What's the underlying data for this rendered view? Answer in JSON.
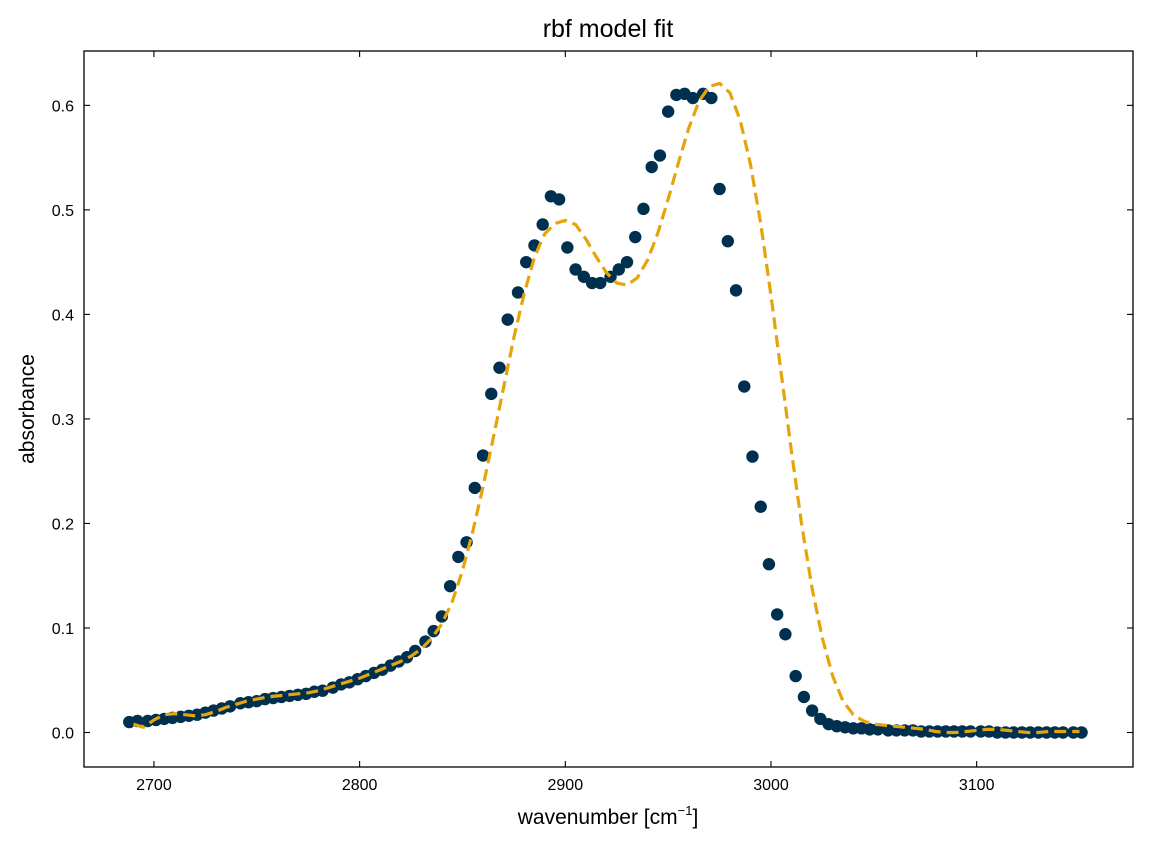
{
  "chart_data": {
    "type": "scatter",
    "title": "rbf model fit",
    "xlabel": "wavenumber [cm",
    "xlabel_sup": "−1",
    "xlabel_close": "]",
    "ylabel": "absorbance",
    "xlim": [
      2666,
      3176
    ],
    "ylim": [
      -0.033,
      0.652
    ],
    "xticks": [
      2700,
      2800,
      2900,
      3000,
      3100
    ],
    "xtick_labels": [
      "2700",
      "2800",
      "2900",
      "3000",
      "3100"
    ],
    "yticks": [
      0.0,
      0.1,
      0.2,
      0.3,
      0.4,
      0.5,
      0.6
    ],
    "ytick_labels": [
      "0.0",
      "0.1",
      "0.2",
      "0.3",
      "0.4",
      "0.5",
      "0.6"
    ],
    "grid": false,
    "colors": {
      "points": "#00304f",
      "fit": "#e5a40a"
    },
    "series": [
      {
        "style": "markers",
        "x": [
          2688,
          2692,
          2697,
          2701,
          2705,
          2709,
          2713,
          2717,
          2721,
          2725,
          2729,
          2733,
          2737,
          2742,
          2746,
          2750,
          2754,
          2758,
          2762,
          2766,
          2770,
          2774,
          2778,
          2782,
          2787,
          2791,
          2795,
          2799,
          2803,
          2807,
          2811,
          2815,
          2819,
          2823,
          2827,
          2832,
          2836,
          2840,
          2844,
          2848,
          2852,
          2856,
          2860,
          2864,
          2868,
          2872,
          2877,
          2881,
          2885,
          2889,
          2893,
          2897,
          2901,
          2905,
          2909,
          2913,
          2917,
          2922,
          2926,
          2930,
          2934,
          2938,
          2942,
          2946,
          2950,
          2954,
          2958,
          2962,
          2967,
          2971,
          2975,
          2979,
          2983,
          2987,
          2991,
          2995,
          2999,
          3003,
          3007,
          3012,
          3016,
          3020,
          3024,
          3028,
          3032,
          3036,
          3040,
          3044,
          3048,
          3052,
          3057,
          3061,
          3065,
          3069,
          3073,
          3077,
          3081,
          3085,
          3089,
          3093,
          3097,
          3102,
          3106,
          3110,
          3114,
          3118,
          3122,
          3126,
          3130,
          3134,
          3138,
          3142,
          3147,
          3151
        ],
        "y": [
          0.01,
          0.011,
          0.011,
          0.012,
          0.013,
          0.014,
          0.015,
          0.016,
          0.017,
          0.019,
          0.021,
          0.023,
          0.025,
          0.028,
          0.029,
          0.03,
          0.032,
          0.033,
          0.034,
          0.035,
          0.036,
          0.037,
          0.039,
          0.04,
          0.043,
          0.046,
          0.048,
          0.051,
          0.054,
          0.057,
          0.06,
          0.064,
          0.068,
          0.072,
          0.078,
          0.087,
          0.097,
          0.111,
          0.14,
          0.168,
          0.182,
          0.234,
          0.265,
          0.324,
          0.349,
          0.395,
          0.421,
          0.45,
          0.466,
          0.486,
          0.513,
          0.51,
          0.464,
          0.443,
          0.436,
          0.43,
          0.43,
          0.436,
          0.443,
          0.45,
          0.474,
          0.501,
          0.541,
          0.552,
          0.594,
          0.61,
          0.611,
          0.607,
          0.611,
          0.607,
          0.52,
          0.47,
          0.423,
          0.331,
          0.264,
          0.216,
          0.161,
          0.113,
          0.094,
          0.054,
          0.034,
          0.021,
          0.013,
          0.008,
          0.006,
          0.005,
          0.004,
          0.004,
          0.003,
          0.003,
          0.002,
          0.002,
          0.002,
          0.002,
          0.001,
          0.001,
          0.001,
          0.001,
          0.001,
          0.001,
          0.001,
          0.001,
          0.001,
          0.0,
          0.0,
          0.0,
          0.0,
          0.0,
          0.0,
          0.0,
          0.0,
          0.0,
          0.0,
          0.0
        ]
      },
      {
        "style": "dashed-line",
        "x": [
          2690,
          2695,
          2700,
          2705,
          2710,
          2715,
          2720,
          2725,
          2730,
          2735,
          2740,
          2745,
          2750,
          2755,
          2760,
          2765,
          2770,
          2775,
          2780,
          2785,
          2790,
          2795,
          2800,
          2805,
          2810,
          2815,
          2820,
          2825,
          2830,
          2835,
          2840,
          2845,
          2850,
          2855,
          2860,
          2865,
          2870,
          2875,
          2880,
          2885,
          2890,
          2895,
          2900,
          2905,
          2910,
          2915,
          2920,
          2925,
          2930,
          2935,
          2940,
          2945,
          2950,
          2955,
          2960,
          2965,
          2970,
          2975,
          2980,
          2985,
          2990,
          2995,
          3000,
          3005,
          3010,
          3015,
          3020,
          3025,
          3030,
          3035,
          3040,
          3045,
          3050,
          3055,
          3060,
          3065,
          3070,
          3075,
          3080,
          3085,
          3090,
          3095,
          3100,
          3105,
          3110,
          3115,
          3120,
          3125,
          3130,
          3135,
          3140,
          3145,
          3150
        ],
        "y": [
          0.008,
          0.005,
          0.012,
          0.017,
          0.018,
          0.017,
          0.016,
          0.017,
          0.02,
          0.024,
          0.027,
          0.03,
          0.032,
          0.034,
          0.035,
          0.036,
          0.037,
          0.038,
          0.04,
          0.043,
          0.046,
          0.049,
          0.052,
          0.056,
          0.06,
          0.064,
          0.068,
          0.073,
          0.08,
          0.09,
          0.104,
          0.125,
          0.155,
          0.192,
          0.235,
          0.282,
          0.33,
          0.378,
          0.42,
          0.455,
          0.477,
          0.487,
          0.49,
          0.486,
          0.472,
          0.455,
          0.44,
          0.43,
          0.428,
          0.435,
          0.452,
          0.478,
          0.51,
          0.545,
          0.578,
          0.604,
          0.618,
          0.621,
          0.612,
          0.586,
          0.544,
          0.487,
          0.418,
          0.343,
          0.268,
          0.198,
          0.138,
          0.09,
          0.054,
          0.03,
          0.017,
          0.011,
          0.008,
          0.007,
          0.006,
          0.005,
          0.004,
          0.003,
          0.001,
          0.0,
          0.0,
          0.001,
          0.002,
          0.003,
          0.003,
          0.002,
          0.001,
          0.0,
          0.0,
          0.001,
          0.001,
          0.001,
          0.001
        ]
      }
    ]
  }
}
